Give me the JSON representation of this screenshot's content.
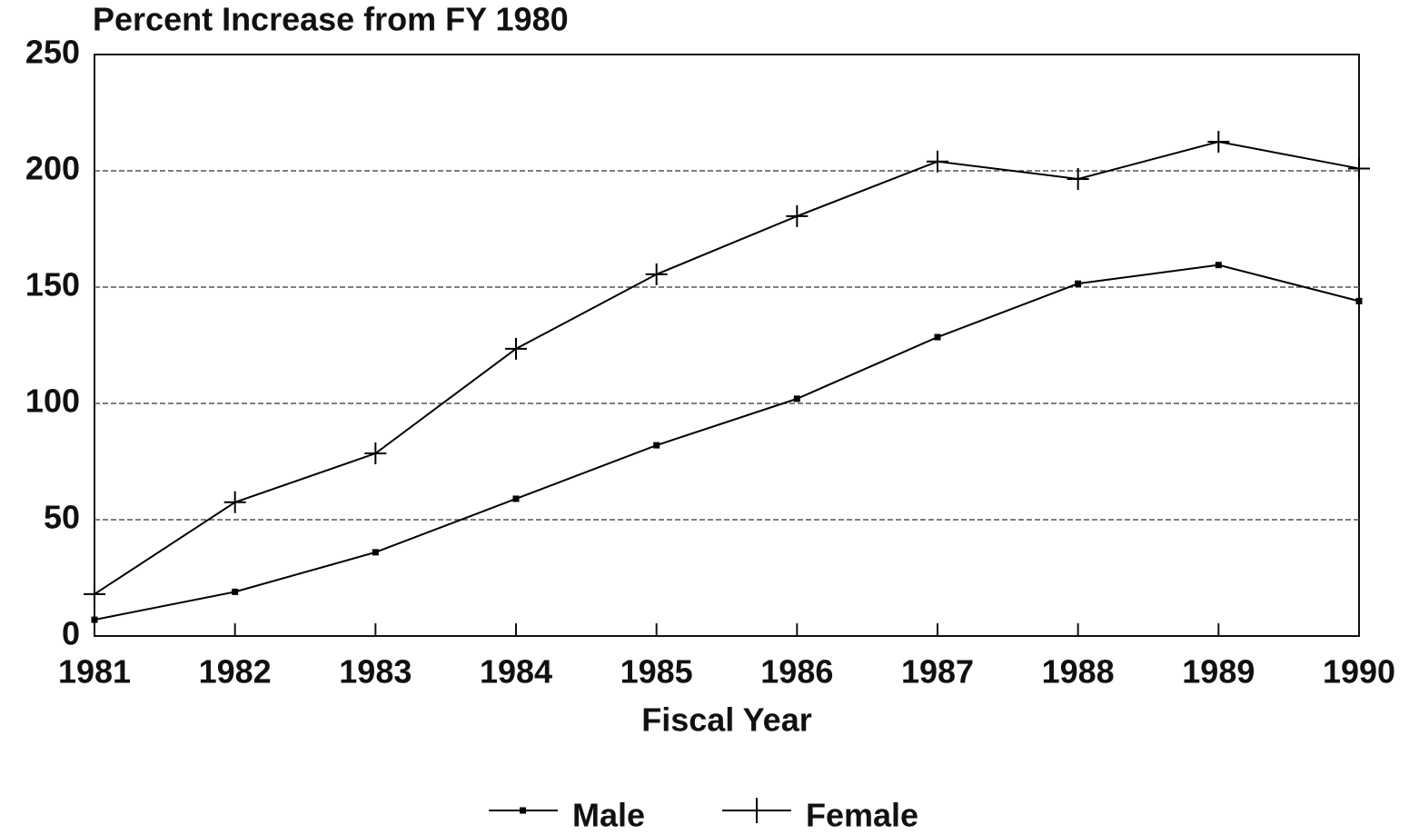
{
  "chart_data": {
    "type": "line",
    "title": "Percent Increase from FY 1980",
    "x_label": "Fiscal Year",
    "x": [
      1981,
      1982,
      1983,
      1984,
      1985,
      1986,
      1987,
      1988,
      1989,
      1990
    ],
    "series": [
      {
        "name": "Male",
        "color": "#000000",
        "marker": "square",
        "values": [
          7,
          19,
          36,
          59,
          82,
          102,
          128.5,
          151.5,
          159.5,
          144
        ]
      },
      {
        "name": "Female",
        "color": "#000000",
        "marker": "plus",
        "values": [
          18,
          57.5,
          78.5,
          123.5,
          155.5,
          180.5,
          204,
          196.5,
          212.5,
          201
        ]
      }
    ],
    "xlim": [
      1981,
      1990
    ],
    "xticks": [
      1981,
      1982,
      1983,
      1984,
      1985,
      1986,
      1987,
      1988,
      1989,
      1990
    ],
    "ylim": [
      0,
      250
    ],
    "yticks": [
      0,
      50,
      100,
      150,
      200,
      250
    ],
    "grid": true,
    "legend": "bottom"
  }
}
